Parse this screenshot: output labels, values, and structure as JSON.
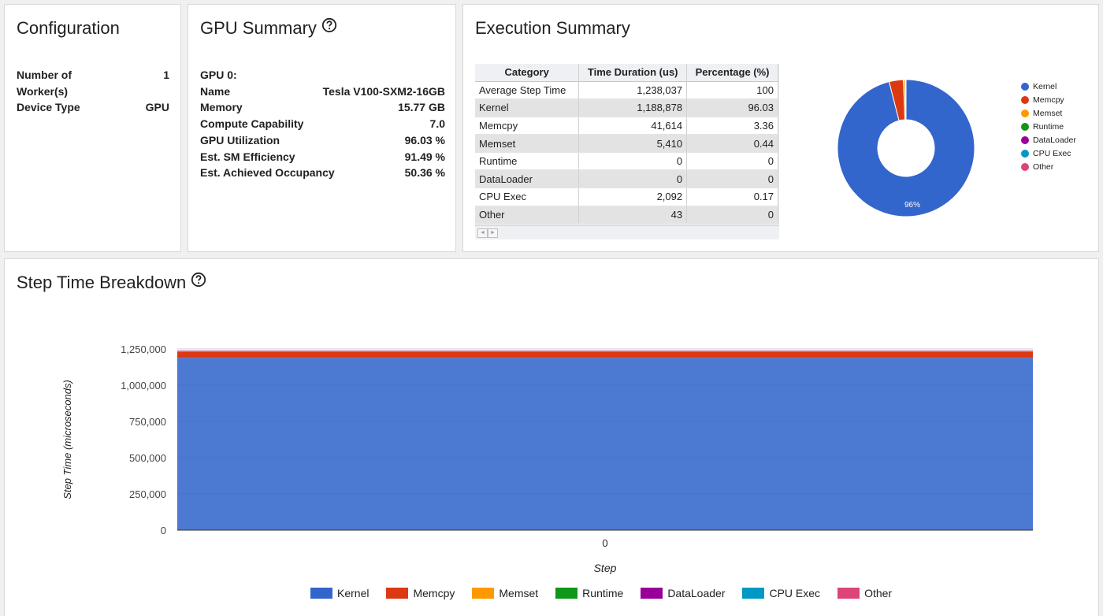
{
  "configuration": {
    "title": "Configuration",
    "rows": [
      {
        "label": "Number of Worker(s)",
        "value": "1"
      },
      {
        "label": "Device Type",
        "value": "GPU"
      }
    ]
  },
  "gpu_summary": {
    "title": "GPU Summary",
    "help_icon": "help-circle-icon",
    "header": "GPU 0:",
    "rows": [
      {
        "label": "Name",
        "value": "Tesla V100-SXM2-16GB"
      },
      {
        "label": "Memory",
        "value": "15.77 GB"
      },
      {
        "label": "Compute Capability",
        "value": "7.0"
      },
      {
        "label": "GPU Utilization",
        "value": "96.03 %"
      },
      {
        "label": "Est. SM Efficiency",
        "value": "91.49 %"
      },
      {
        "label": "Est. Achieved Occupancy",
        "value": "50.36 %"
      }
    ]
  },
  "execution_summary": {
    "title": "Execution Summary",
    "columns": [
      "Category",
      "Time Duration (us)",
      "Percentage (%)"
    ],
    "rows": [
      [
        "Average Step Time",
        "1,238,037",
        "100"
      ],
      [
        "Kernel",
        "1,188,878",
        "96.03"
      ],
      [
        "Memcpy",
        "41,614",
        "3.36"
      ],
      [
        "Memset",
        "5,410",
        "0.44"
      ],
      [
        "Runtime",
        "0",
        "0"
      ],
      [
        "DataLoader",
        "0",
        "0"
      ],
      [
        "CPU Exec",
        "2,092",
        "0.17"
      ],
      [
        "Other",
        "43",
        "0"
      ]
    ],
    "pie_label": "96%"
  },
  "step_breakdown": {
    "title": "Step Time Breakdown",
    "help_icon": "help-circle-icon"
  },
  "colors": {
    "Kernel": "#3366cc",
    "Memcpy": "#dc3912",
    "Memset": "#ff9900",
    "Runtime": "#109618",
    "DataLoader": "#990099",
    "CPU Exec": "#0099c6",
    "Other": "#dd4477"
  },
  "chart_data": [
    {
      "type": "pie",
      "donut": true,
      "categories": [
        "Kernel",
        "Memcpy",
        "Memset",
        "Runtime",
        "DataLoader",
        "CPU Exec",
        "Other"
      ],
      "values": [
        1188878,
        41614,
        5410,
        0,
        0,
        2092,
        43
      ],
      "slice_label": "96%",
      "legend": "right"
    },
    {
      "type": "area",
      "stacked": true,
      "xlabel": "Step",
      "ylabel": "Step Time (microseconds)",
      "x": [
        "0"
      ],
      "yticks": [
        "0",
        "250,000",
        "500,000",
        "750,000",
        "1,000,000",
        "1,250,000"
      ],
      "ylim": [
        0,
        1250000
      ],
      "series": [
        {
          "name": "Kernel",
          "values": [
            1188878
          ]
        },
        {
          "name": "Memcpy",
          "values": [
            41614
          ]
        },
        {
          "name": "Memset",
          "values": [
            5410
          ]
        },
        {
          "name": "Runtime",
          "values": [
            0
          ]
        },
        {
          "name": "DataLoader",
          "values": [
            0
          ]
        },
        {
          "name": "CPU Exec",
          "values": [
            2092
          ]
        },
        {
          "name": "Other",
          "values": [
            43
          ]
        }
      ],
      "legend": "bottom",
      "grid": true
    }
  ]
}
